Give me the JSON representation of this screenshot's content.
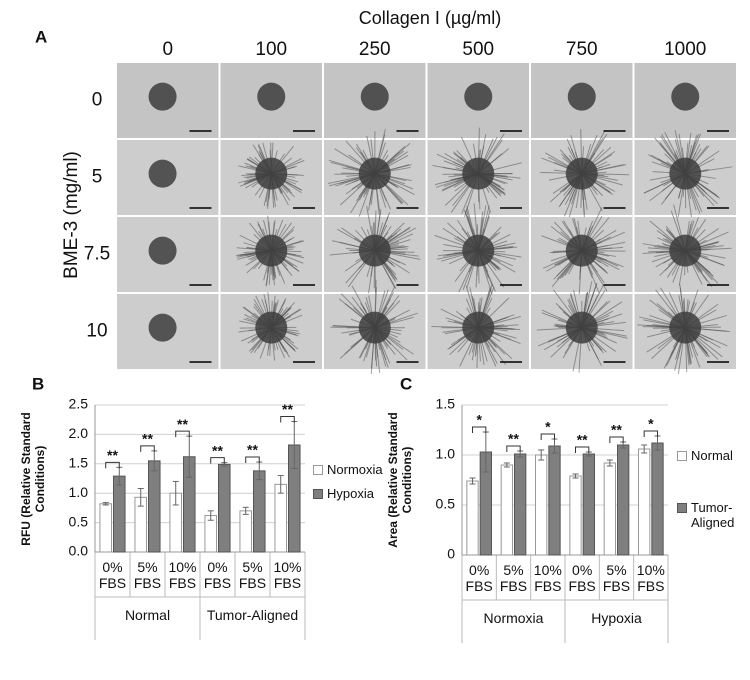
{
  "panel_a": {
    "label": "A",
    "column_title": "Collagen I (µg/ml)",
    "columns": [
      "0",
      "100",
      "250",
      "500",
      "750",
      "1000"
    ],
    "row_title": "BME-3 (mg/ml)",
    "rows": [
      "0",
      "5",
      "7.5",
      "10"
    ]
  },
  "chart_data": [
    {
      "type": "bar",
      "label": "B",
      "y_label": "RFU (Relative Standard Conditions)",
      "categories": [
        "0% FBS",
        "5% FBS",
        "10% FBS",
        "0% FBS",
        "5% FBS",
        "10% FBS"
      ],
      "group_labels": [
        "Normal",
        "Tumor-Aligned"
      ],
      "series": [
        {
          "name": "Normoxia",
          "color": "#ffffff",
          "values": [
            0.82,
            0.93,
            1.0,
            0.62,
            0.7,
            1.15
          ],
          "errors": [
            0.02,
            0.15,
            0.2,
            0.08,
            0.06,
            0.15
          ]
        },
        {
          "name": "Hypoxia",
          "color": "#7f7f7f",
          "values": [
            1.29,
            1.55,
            1.62,
            1.49,
            1.38,
            1.82
          ],
          "errors": [
            0.15,
            0.17,
            0.35,
            0.03,
            0.15,
            0.4
          ]
        }
      ],
      "annotations": [
        "**",
        "**",
        "**",
        "**",
        "**",
        "**"
      ],
      "ylim": [
        0,
        2.5
      ],
      "yticks": [
        {
          "value": 0,
          "label": "0.0"
        },
        0.5,
        {
          "value": 1,
          "label": "1.0"
        },
        1.5,
        {
          "value": 2,
          "label": "2.0"
        },
        2.5
      ],
      "grid": true,
      "legend": "right"
    },
    {
      "type": "bar",
      "label": "C",
      "y_label": "Area (Relative Standard Conditions)",
      "categories": [
        "0% FBS",
        "5% FBS",
        "10% FBS",
        "0% FBS",
        "5% FBS",
        "10% FBS"
      ],
      "group_labels": [
        "Normoxia",
        "Hypoxia"
      ],
      "series": [
        {
          "name": "Normal",
          "color": "#ffffff",
          "values": [
            0.74,
            0.9,
            1.0,
            0.79,
            0.92,
            1.06
          ],
          "errors": [
            0.03,
            0.02,
            0.05,
            0.02,
            0.03,
            0.04
          ]
        },
        {
          "name": "Tumor-Aligned",
          "color": "#7f7f7f",
          "values": [
            1.03,
            1.01,
            1.09,
            1.01,
            1.1,
            1.12
          ],
          "errors": [
            0.2,
            0.03,
            0.07,
            0.02,
            0.03,
            0.07
          ]
        }
      ],
      "annotations": [
        "*",
        "**",
        "*",
        "**",
        "**",
        "*"
      ],
      "ylim": [
        0,
        1.5
      ],
      "yticks": [
        0,
        0.5,
        {
          "value": 1,
          "label": "1.0"
        },
        1.5
      ],
      "grid": true,
      "legend": "right"
    }
  ]
}
